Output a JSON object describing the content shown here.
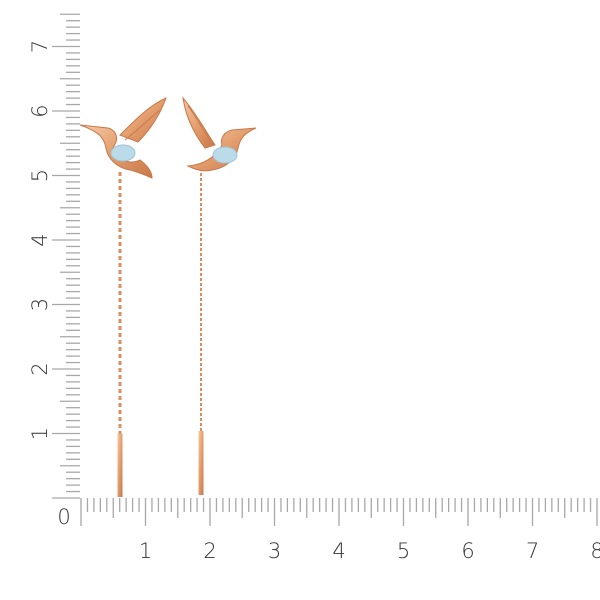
{
  "ruler": {
    "unit_note": "",
    "x_labels": [
      "0",
      "1",
      "2",
      "3",
      "4",
      "5",
      "6",
      "7",
      "8"
    ],
    "y_labels": [
      "1",
      "2",
      "3",
      "4",
      "5",
      "6",
      "7"
    ],
    "color": "#a8a8a8"
  },
  "product": {
    "metal_color": "#e8a67a",
    "stone_color": "#bcdbe8"
  }
}
